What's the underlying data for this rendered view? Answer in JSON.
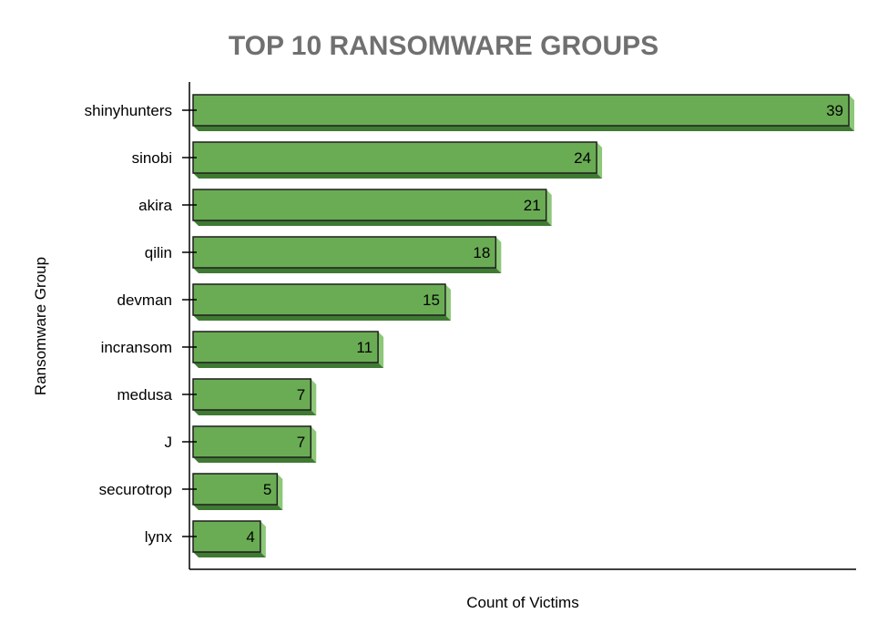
{
  "chart_data": {
    "type": "bar",
    "orientation": "horizontal",
    "title": "TOP 10 RANSOMWARE GROUPS",
    "xlabel": "Count of Victims",
    "ylabel": "Ransomware Group",
    "categories": [
      "shinyhunters",
      "sinobi",
      "akira",
      "qilin",
      "devman",
      "incransom",
      "medusa",
      "J",
      "securotrop",
      "lynx"
    ],
    "values": [
      39,
      24,
      21,
      18,
      15,
      11,
      7,
      7,
      5,
      4
    ],
    "xlim": [
      0,
      39
    ],
    "grid": false,
    "legend": "none",
    "data_labels": true,
    "bar_style": "3d-shadow",
    "colors": {
      "bar_fill": "#6aac54",
      "bar_shadow": "#3f7a32",
      "bar_side": "#8cc878",
      "bar_stroke": "#1f1f1f",
      "title": "#707070",
      "axis": "#000000"
    }
  }
}
